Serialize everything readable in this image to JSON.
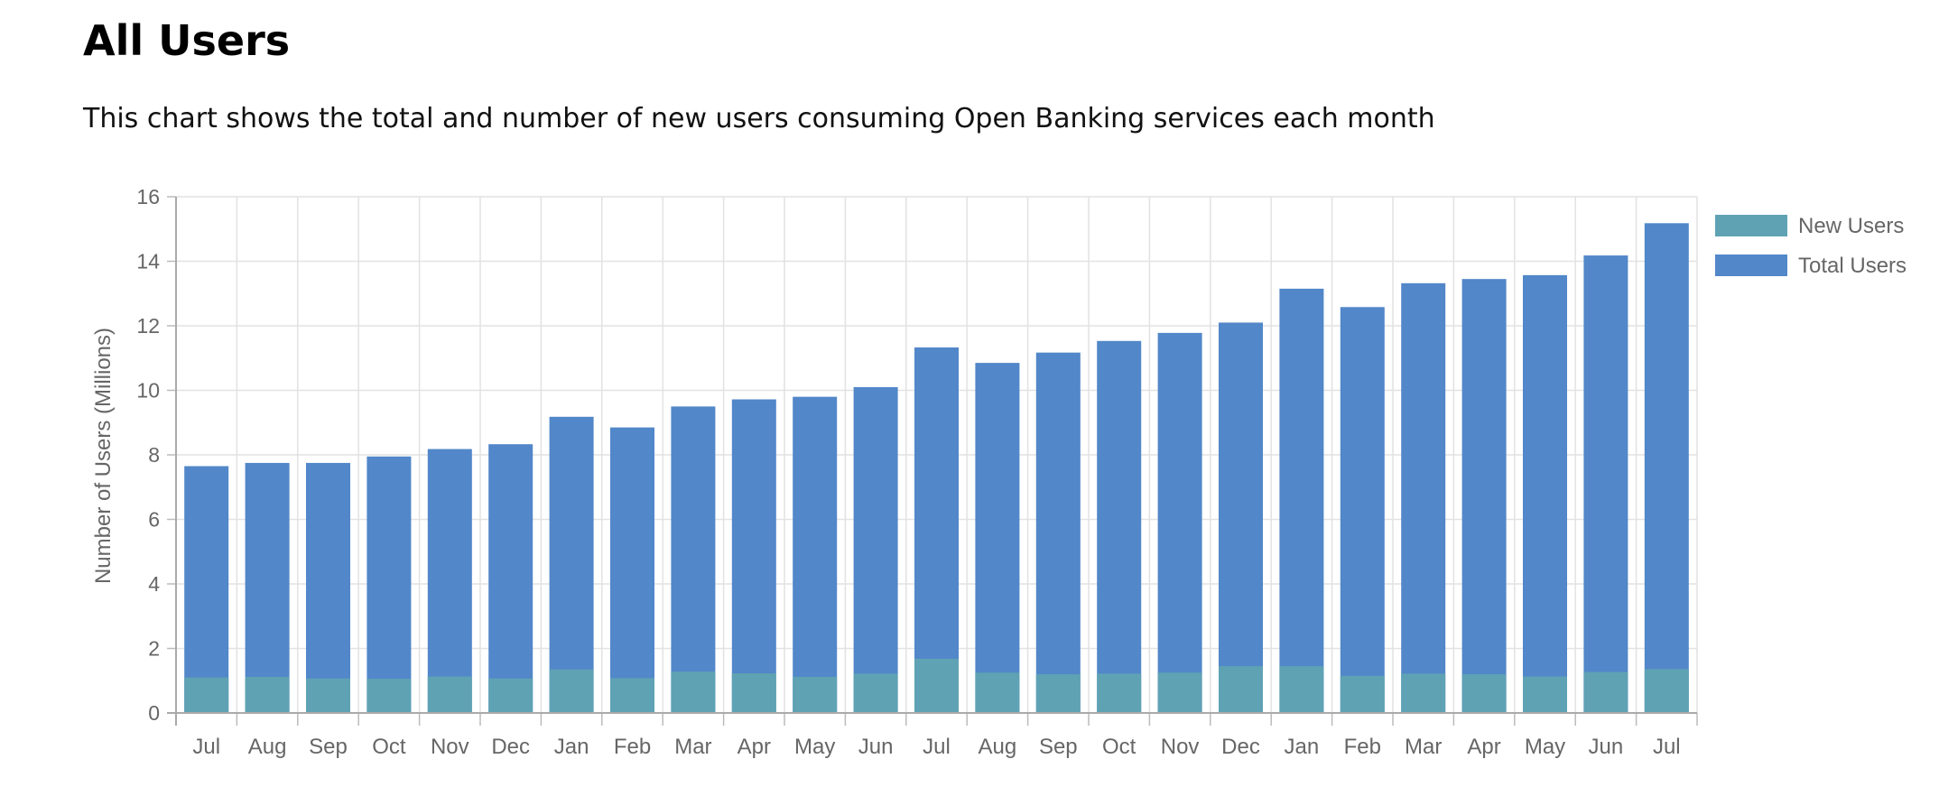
{
  "header": {
    "title": "All Users",
    "subtitle": "This chart shows the total and number of new users consuming Open Banking services each month"
  },
  "chart_data": {
    "type": "bar",
    "stacked": false,
    "overlapping": true,
    "ylabel": "Number of Users (Millions)",
    "xlabel": "",
    "ylim": [
      0,
      16
    ],
    "ytick_step": 2,
    "grid": true,
    "legend_position": "right",
    "categories": [
      "Jul",
      "Aug",
      "Sep",
      "Oct",
      "Nov",
      "Dec",
      "Jan",
      "Feb",
      "Mar",
      "Apr",
      "May",
      "Jun",
      "Jul",
      "Aug",
      "Sep",
      "Oct",
      "Nov",
      "Dec",
      "Jan",
      "Feb",
      "Mar",
      "Apr",
      "May",
      "Jun",
      "Jul"
    ],
    "series": [
      {
        "name": "New Users",
        "color": "#5fa2b4",
        "values": [
          1.1,
          1.12,
          1.07,
          1.06,
          1.13,
          1.07,
          1.35,
          1.08,
          1.28,
          1.23,
          1.12,
          1.22,
          1.68,
          1.25,
          1.2,
          1.22,
          1.25,
          1.45,
          1.45,
          1.15,
          1.22,
          1.2,
          1.13,
          1.27,
          1.36
        ]
      },
      {
        "name": "Total Users",
        "color": "#5287c9",
        "values": [
          7.65,
          7.75,
          7.75,
          7.95,
          8.18,
          8.33,
          9.18,
          8.85,
          9.5,
          9.72,
          9.8,
          10.1,
          11.33,
          10.85,
          11.17,
          11.53,
          11.78,
          12.1,
          13.15,
          12.58,
          13.32,
          13.45,
          13.57,
          14.18,
          15.18
        ]
      }
    ]
  }
}
